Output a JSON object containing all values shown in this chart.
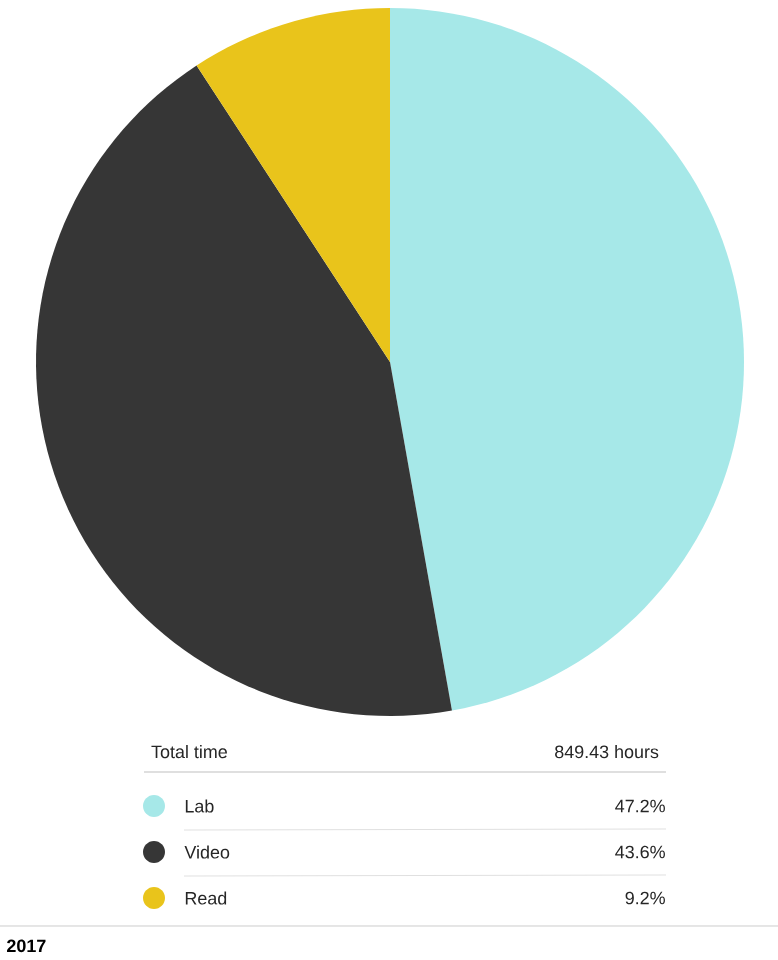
{
  "chart_data": {
    "type": "pie",
    "categories": [
      "Lab",
      "Video",
      "Read"
    ],
    "values": [
      47.2,
      43.6,
      9.2
    ],
    "value_labels": [
      "47.2%",
      "43.6%",
      "9.2%"
    ],
    "colors": [
      "#a6e8e8",
      "#363636",
      "#e9c41b"
    ],
    "legend": "bottom",
    "annotations": [
      "Total time",
      "849.43 hours",
      "2017"
    ]
  }
}
